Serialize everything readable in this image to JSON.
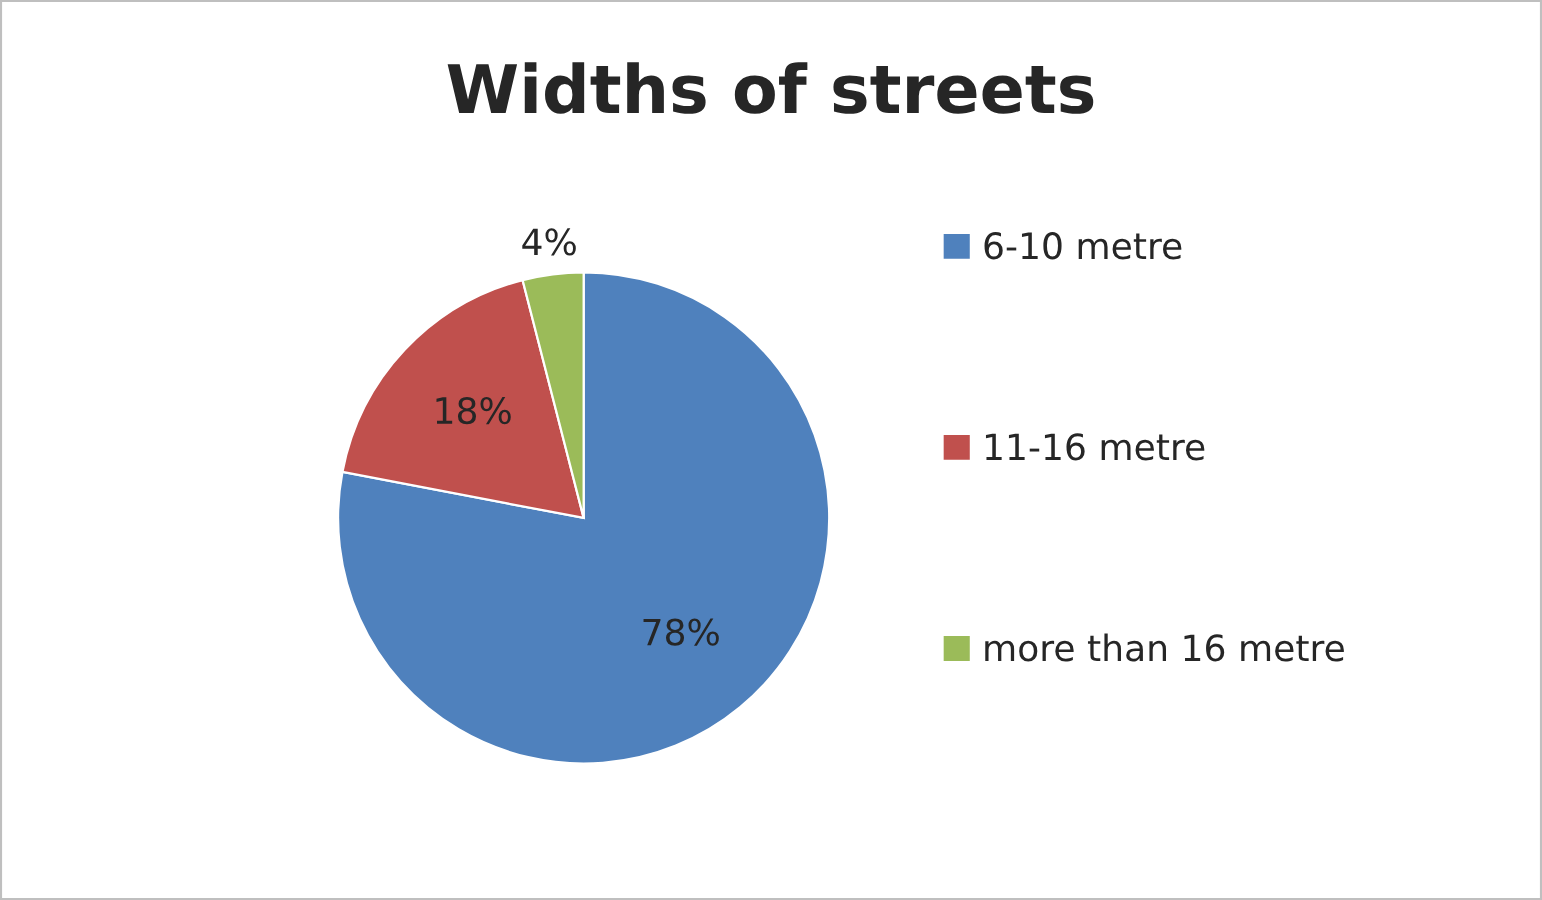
{
  "chart_data": {
    "type": "pie",
    "title": "Widths of streets",
    "categories": [
      "6-10 metre",
      "11-16 metre",
      "more than 16 metre"
    ],
    "values": [
      78,
      18,
      4
    ],
    "colors": [
      "#4f81bd",
      "#c0504d",
      "#9bbb59"
    ],
    "value_labels": [
      "78%",
      "18%",
      "4%"
    ],
    "legend": "right"
  }
}
